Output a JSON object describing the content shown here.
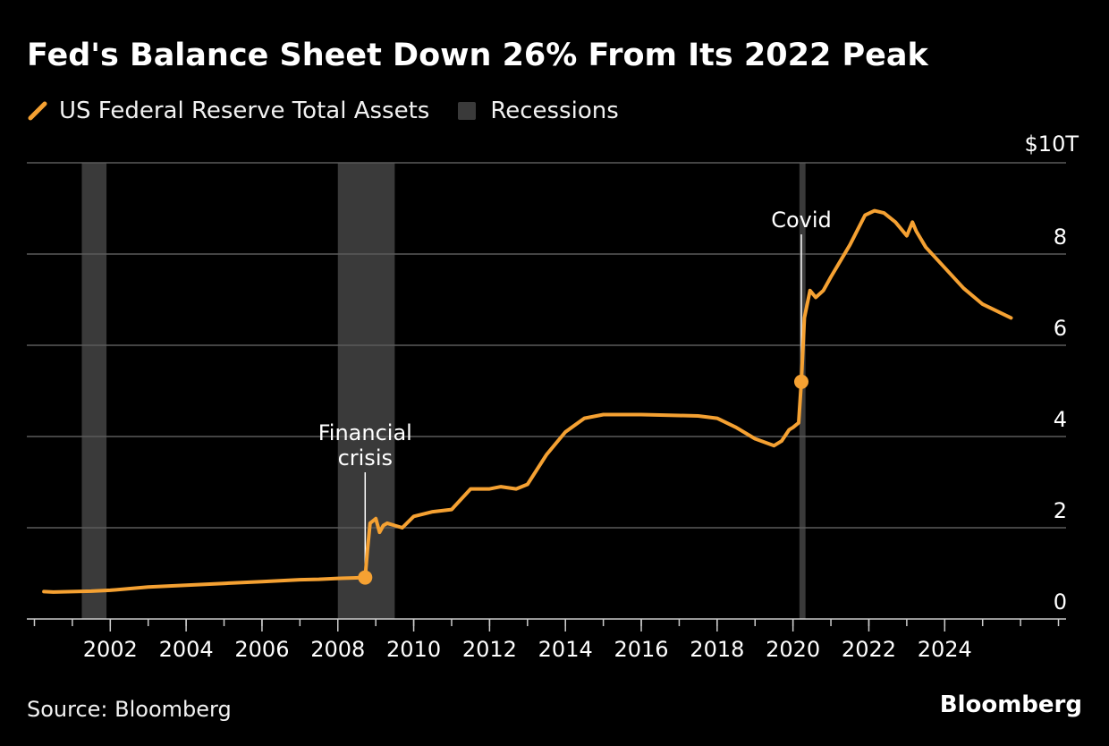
{
  "title": "Fed's Balance Sheet Down 26% From Its 2022 Peak",
  "legend": {
    "series_label": "US Federal Reserve Total Assets",
    "recession_label": "Recessions"
  },
  "colors": {
    "series": "#f5a132",
    "recession": "#3a3a3a",
    "grid": "#5a5a5a",
    "axis": "#cccccc",
    "text": "#ffffff"
  },
  "source": "Source: Bloomberg",
  "brand": "Bloomberg",
  "chart_data": {
    "type": "line",
    "title": "Fed's Balance Sheet Down 26% From Its 2022 Peak",
    "xlabel": "",
    "ylabel": "$10T",
    "xlim": [
      1999.8,
      2027.2
    ],
    "ylim": [
      0,
      10
    ],
    "y_unit_label": "$10T",
    "y_ticks": [
      {
        "value": 0,
        "label": "0"
      },
      {
        "value": 2,
        "label": "2"
      },
      {
        "value": 4,
        "label": "4"
      },
      {
        "value": 6,
        "label": "6"
      },
      {
        "value": 8,
        "label": "8"
      },
      {
        "value": 10,
        "label": ""
      }
    ],
    "x_ticks": [
      {
        "value": 2002,
        "label": "2002"
      },
      {
        "value": 2004,
        "label": "2004"
      },
      {
        "value": 2006,
        "label": "2006"
      },
      {
        "value": 2008,
        "label": "2008"
      },
      {
        "value": 2010,
        "label": "2010"
      },
      {
        "value": 2012,
        "label": "2012"
      },
      {
        "value": 2014,
        "label": "2014"
      },
      {
        "value": 2016,
        "label": "2016"
      },
      {
        "value": 2018,
        "label": "2018"
      },
      {
        "value": 2020,
        "label": "2020"
      },
      {
        "value": 2022,
        "label": "2022"
      },
      {
        "value": 2024,
        "label": "2024"
      }
    ],
    "grid": true,
    "legend_position": "top-left",
    "recessions": [
      {
        "start": 2001.25,
        "end": 2001.9
      },
      {
        "start": 2008.0,
        "end": 2009.5
      },
      {
        "start": 2020.17,
        "end": 2020.33
      }
    ],
    "series": [
      {
        "name": "US Federal Reserve Total Assets",
        "x": [
          2000.25,
          2000.5,
          2001.0,
          2001.5,
          2002.0,
          2003.0,
          2004.0,
          2005.0,
          2006.0,
          2007.0,
          2007.5,
          2008.0,
          2008.4,
          2008.72,
          2008.78,
          2008.85,
          2009.0,
          2009.1,
          2009.2,
          2009.3,
          2009.5,
          2009.7,
          2010.0,
          2010.5,
          2011.0,
          2011.5,
          2011.9,
          2012.0,
          2012.3,
          2012.7,
          2013.0,
          2013.5,
          2014.0,
          2014.5,
          2015.0,
          2015.5,
          2016.0,
          2016.5,
          2017.0,
          2017.5,
          2018.0,
          2018.5,
          2019.0,
          2019.5,
          2019.7,
          2019.9,
          2020.0,
          2020.15,
          2020.22,
          2020.3,
          2020.45,
          2020.6,
          2020.8,
          2021.0,
          2021.5,
          2021.9,
          2022.15,
          2022.4,
          2022.7,
          2023.0,
          2023.15,
          2023.25,
          2023.5,
          2024.0,
          2024.5,
          2025.0,
          2025.5,
          2025.75
        ],
        "values": [
          0.6,
          0.59,
          0.6,
          0.61,
          0.63,
          0.7,
          0.74,
          0.78,
          0.82,
          0.86,
          0.87,
          0.89,
          0.9,
          0.91,
          1.5,
          2.1,
          2.2,
          1.9,
          2.05,
          2.1,
          2.05,
          2.0,
          2.25,
          2.35,
          2.4,
          2.85,
          2.85,
          2.85,
          2.9,
          2.85,
          2.95,
          3.6,
          4.1,
          4.4,
          4.48,
          4.48,
          4.48,
          4.47,
          4.46,
          4.45,
          4.4,
          4.2,
          3.95,
          3.8,
          3.9,
          4.15,
          4.2,
          4.3,
          5.2,
          6.6,
          7.2,
          7.05,
          7.2,
          7.5,
          8.2,
          8.85,
          8.95,
          8.9,
          8.7,
          8.4,
          8.7,
          8.5,
          8.15,
          7.7,
          7.25,
          6.9,
          6.7,
          6.6
        ]
      }
    ],
    "markers": [
      {
        "x": 2008.72,
        "y": 0.91
      },
      {
        "x": 2020.22,
        "y": 5.2
      }
    ],
    "annotations": [
      {
        "lines": [
          "Financial",
          "crisis"
        ],
        "x": 2008.72,
        "y": 0.91
      },
      {
        "lines": [
          "Covid"
        ],
        "x": 2020.22,
        "y": 5.2
      }
    ]
  }
}
